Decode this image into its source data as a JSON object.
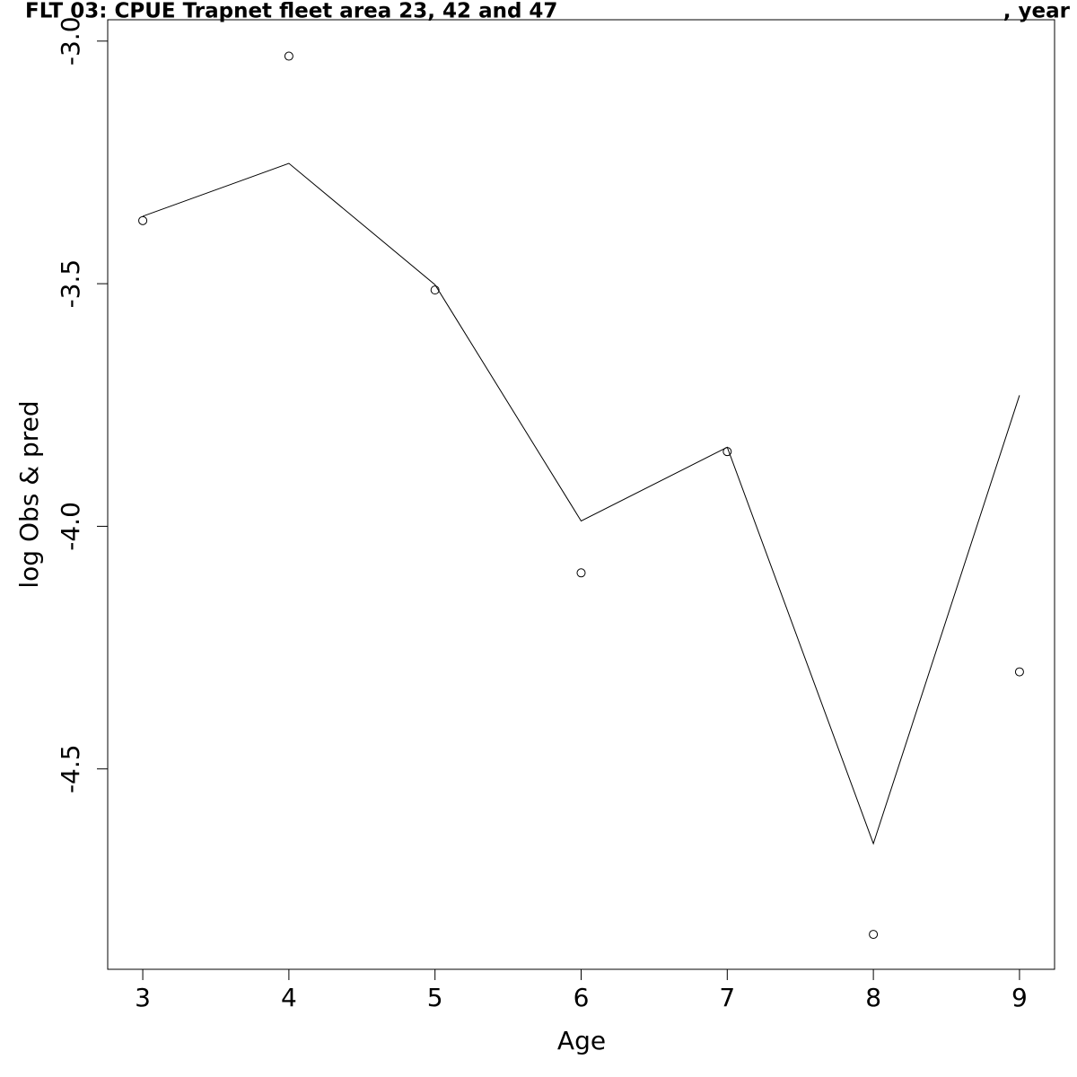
{
  "chart_data": {
    "type": "line",
    "title": "FLT 03: CPUE Trapnet fleet area 23, 42 and 47",
    "title_end": ", year",
    "x_label": "Age",
    "y_label": "log Obs & pred",
    "xlim": [
      2.76,
      9.24
    ],
    "ylim": [
      -4.913,
      -2.956
    ],
    "xticks": [
      3,
      4,
      5,
      6,
      7,
      8,
      9
    ],
    "yticks": [
      {
        "value": -3.0,
        "label": "-3.0"
      },
      {
        "value": -3.5,
        "label": "-3.5"
      },
      {
        "value": -4.0,
        "label": "-4.0"
      },
      {
        "value": -4.5,
        "label": "-4.5"
      }
    ],
    "x": [
      3,
      4,
      5,
      6,
      7,
      8,
      9
    ],
    "series": [
      {
        "kind": "points",
        "color": "#000000",
        "values": [
          -3.37,
          -3.031,
          -3.513,
          -4.096,
          -3.846,
          -4.841,
          -4.3
        ]
      },
      {
        "kind": "line",
        "color": "#000000",
        "values": [
          -3.361,
          -3.252,
          -3.502,
          -3.989,
          -3.837,
          -4.654,
          -3.73
        ]
      }
    ]
  }
}
